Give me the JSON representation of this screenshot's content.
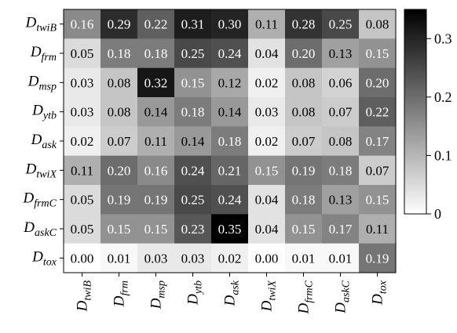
{
  "chart_data": {
    "type": "heatmap",
    "title": "",
    "xlabel": "",
    "ylabel": "",
    "rows": [
      {
        "base": "D",
        "sub": "twiB"
      },
      {
        "base": "D",
        "sub": "frm"
      },
      {
        "base": "D",
        "sub": "msp"
      },
      {
        "base": "D",
        "sub": "ytb"
      },
      {
        "base": "D",
        "sub": "ask"
      },
      {
        "base": "D",
        "sub": "twiX"
      },
      {
        "base": "D",
        "sub": "frmC"
      },
      {
        "base": "D",
        "sub": "askC"
      },
      {
        "base": "D",
        "sub": "tox"
      }
    ],
    "columns": [
      {
        "base": "D",
        "sub": "twiB"
      },
      {
        "base": "D",
        "sub": "frm"
      },
      {
        "base": "D",
        "sub": "msp"
      },
      {
        "base": "D",
        "sub": "ytb"
      },
      {
        "base": "D",
        "sub": "ask"
      },
      {
        "base": "D",
        "sub": "twiX"
      },
      {
        "base": "D",
        "sub": "frmC"
      },
      {
        "base": "D",
        "sub": "askC"
      },
      {
        "base": "D",
        "sub": "tox"
      }
    ],
    "values": [
      [
        0.16,
        0.29,
        0.22,
        0.31,
        0.3,
        0.11,
        0.28,
        0.25,
        0.08
      ],
      [
        0.05,
        0.18,
        0.18,
        0.25,
        0.24,
        0.04,
        0.2,
        0.13,
        0.15
      ],
      [
        0.03,
        0.08,
        0.32,
        0.15,
        0.12,
        0.02,
        0.08,
        0.06,
        0.2
      ],
      [
        0.03,
        0.08,
        0.14,
        0.18,
        0.14,
        0.03,
        0.08,
        0.07,
        0.22
      ],
      [
        0.02,
        0.07,
        0.11,
        0.14,
        0.18,
        0.02,
        0.07,
        0.08,
        0.17
      ],
      [
        0.11,
        0.2,
        0.16,
        0.24,
        0.21,
        0.15,
        0.19,
        0.18,
        0.07
      ],
      [
        0.05,
        0.19,
        0.19,
        0.25,
        0.24,
        0.04,
        0.18,
        0.13,
        0.15
      ],
      [
        0.05,
        0.15,
        0.15,
        0.23,
        0.35,
        0.04,
        0.15,
        0.17,
        0.11
      ],
      [
        0.0,
        0.01,
        0.03,
        0.03,
        0.02,
        0.0,
        0.01,
        0.01,
        0.19
      ]
    ],
    "colorbar": {
      "min": 0,
      "max": 0.35,
      "ticks": [
        0,
        0.1,
        0.2,
        0.3
      ],
      "tick_labels": [
        "0",
        "0.1",
        "0.2",
        "0.3"
      ]
    },
    "colormap": {
      "low": "#ffffff",
      "high": "#000000"
    },
    "grid": false,
    "legend": "colorbar-right"
  }
}
